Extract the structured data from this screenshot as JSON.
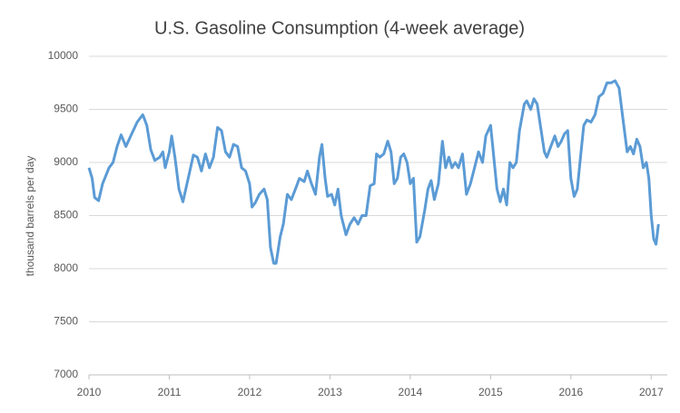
{
  "chart_data": {
    "type": "line",
    "title": "U.S. Gasoline Consumption (4-week average)",
    "y_label": "thousand barrels per day",
    "x": [
      2010.0,
      2010.04,
      2010.07,
      2010.12,
      2010.17,
      2010.25,
      2010.3,
      2010.35,
      2010.4,
      2010.46,
      2010.52,
      2010.6,
      2010.67,
      2010.72,
      2010.77,
      2010.82,
      2010.88,
      2010.92,
      2010.95,
      2011.0,
      2011.03,
      2011.07,
      2011.12,
      2011.17,
      2011.25,
      2011.3,
      2011.35,
      2011.4,
      2011.45,
      2011.5,
      2011.55,
      2011.6,
      2011.65,
      2011.7,
      2011.75,
      2011.8,
      2011.85,
      2011.9,
      2011.95,
      2012.0,
      2012.03,
      2012.07,
      2012.12,
      2012.18,
      2012.22,
      2012.26,
      2012.3,
      2012.33,
      2012.38,
      2012.42,
      2012.47,
      2012.52,
      2012.57,
      2012.62,
      2012.68,
      2012.72,
      2012.77,
      2012.82,
      2012.87,
      2012.9,
      2012.94,
      2012.97,
      2013.02,
      2013.06,
      2013.1,
      2013.14,
      2013.2,
      2013.25,
      2013.3,
      2013.35,
      2013.4,
      2013.45,
      2013.5,
      2013.55,
      2013.58,
      2013.62,
      2013.67,
      2013.72,
      2013.76,
      2013.8,
      2013.84,
      2013.88,
      2013.92,
      2013.96,
      2014.0,
      2014.04,
      2014.08,
      2014.12,
      2014.18,
      2014.22,
      2014.26,
      2014.3,
      2014.35,
      2014.4,
      2014.44,
      2014.48,
      2014.52,
      2014.56,
      2014.6,
      2014.65,
      2014.7,
      2014.75,
      2014.8,
      2014.85,
      2014.9,
      2014.94,
      2015.0,
      2015.04,
      2015.08,
      2015.12,
      2015.16,
      2015.2,
      2015.24,
      2015.28,
      2015.32,
      2015.36,
      2015.42,
      2015.45,
      2015.5,
      2015.54,
      2015.58,
      2015.62,
      2015.67,
      2015.7,
      2015.75,
      2015.8,
      2015.84,
      2015.88,
      2015.92,
      2015.96,
      2016.0,
      2016.04,
      2016.08,
      2016.12,
      2016.16,
      2016.2,
      2016.25,
      2016.3,
      2016.35,
      2016.4,
      2016.45,
      2016.5,
      2016.55,
      2016.6,
      2016.65,
      2016.7,
      2016.74,
      2016.78,
      2016.82,
      2016.86,
      2016.9,
      2016.94,
      2016.97,
      2017.0,
      2017.03,
      2017.06,
      2017.09
    ],
    "series": [
      {
        "name": "U.S. Gasoline Consumption",
        "color": "#5b9bd5",
        "values": [
          8950,
          8850,
          8670,
          8640,
          8800,
          8950,
          9000,
          9150,
          9260,
          9150,
          9250,
          9380,
          9450,
          9350,
          9120,
          9020,
          9050,
          9100,
          8950,
          9100,
          9250,
          9050,
          8750,
          8630,
          8900,
          9070,
          9050,
          8920,
          9080,
          8950,
          9050,
          9330,
          9300,
          9100,
          9050,
          9170,
          9150,
          8950,
          8920,
          8800,
          8580,
          8620,
          8700,
          8750,
          8650,
          8200,
          8050,
          8050,
          8300,
          8420,
          8700,
          8650,
          8750,
          8850,
          8820,
          8920,
          8800,
          8700,
          9050,
          9170,
          8850,
          8680,
          8700,
          8600,
          8750,
          8500,
          8320,
          8420,
          8480,
          8420,
          8500,
          8500,
          8780,
          8800,
          9080,
          9050,
          9080,
          9200,
          9100,
          8800,
          8850,
          9050,
          9080,
          9000,
          8800,
          8850,
          8250,
          8300,
          8550,
          8750,
          8830,
          8650,
          8800,
          9200,
          8950,
          9050,
          8950,
          9000,
          8950,
          9080,
          8700,
          8800,
          8950,
          9100,
          9000,
          9250,
          9350,
          9050,
          8750,
          8630,
          8750,
          8600,
          9000,
          8950,
          9000,
          9300,
          9550,
          9580,
          9500,
          9600,
          9550,
          9350,
          9100,
          9050,
          9150,
          9250,
          9150,
          9200,
          9270,
          9300,
          8850,
          8680,
          8750,
          9050,
          9350,
          9400,
          9380,
          9450,
          9620,
          9650,
          9750,
          9750,
          9770,
          9700,
          9400,
          9100,
          9150,
          9080,
          9220,
          9150,
          8950,
          9000,
          8850,
          8500,
          8280,
          8230,
          8420
        ]
      }
    ],
    "xlim": [
      2010,
      2017.2
    ],
    "xticks": [
      2010,
      2011,
      2012,
      2013,
      2014,
      2015,
      2016,
      2017
    ],
    "ylim": [
      7000,
      10000
    ],
    "yticks": [
      7000,
      7500,
      8000,
      8500,
      9000,
      9500,
      10000
    ],
    "grid": true
  }
}
